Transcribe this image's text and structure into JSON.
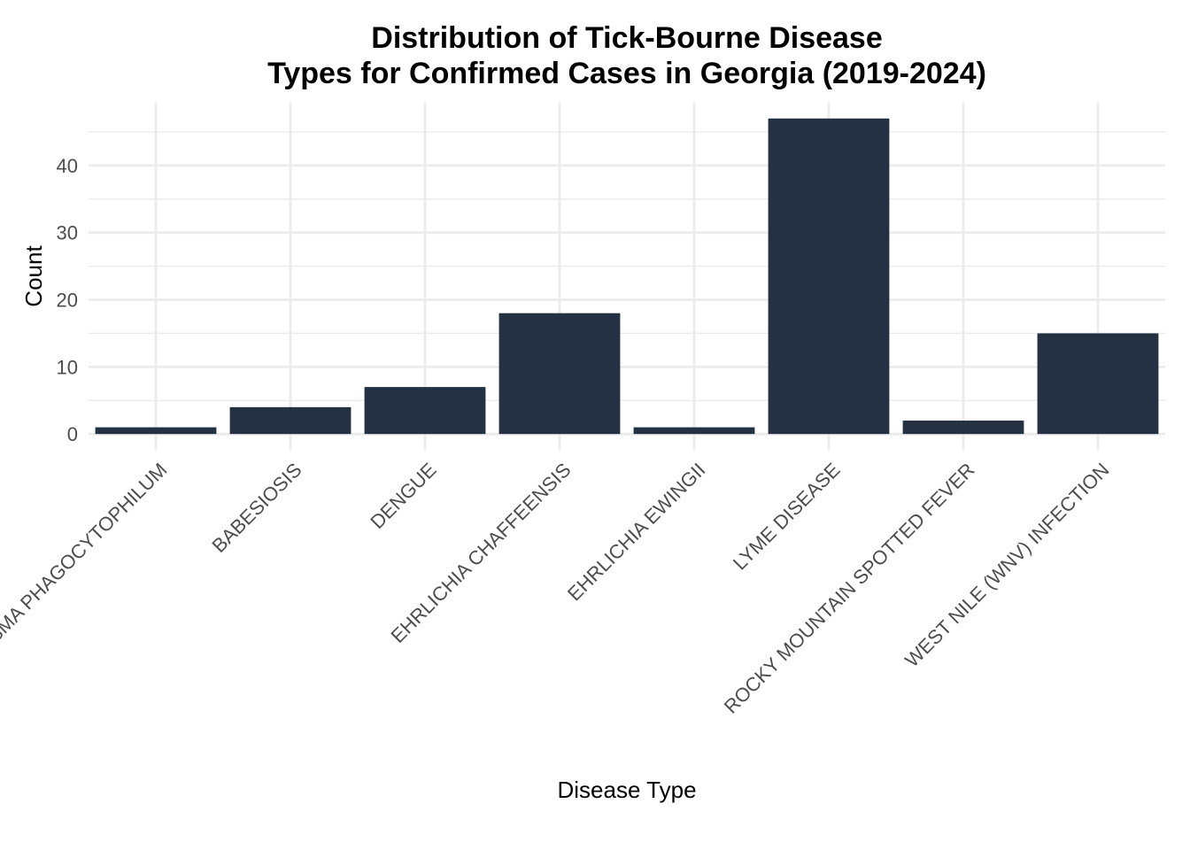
{
  "chart_data": {
    "type": "bar",
    "title": [
      "Distribution of Tick-Bourne Disease",
      "Types for Confirmed Cases in Georgia (2019-2024)"
    ],
    "xlabel": "Disease Type",
    "ylabel": "Count",
    "categories": [
      "ANAPLASMA PHAGOCYTOPHILUM",
      "BABESIOSIS",
      "DENGUE",
      "EHRLICHIA CHAFFEENSIS",
      "EHRLICHIA EWINGII",
      "LYME DISEASE",
      "ROCKY MOUNTAIN SPOTTED FEVER",
      "WEST NILE (WNV) INFECTION"
    ],
    "values": [
      1,
      4,
      7,
      18,
      1,
      47,
      2,
      15
    ],
    "yticks": [
      0,
      10,
      20,
      30,
      40
    ],
    "ylim": [
      -2.35,
      49.35
    ],
    "grid": true,
    "legend": "none",
    "colors": {
      "bar": "#233142",
      "grid": "#ebebeb",
      "tick_text": "#4d4d4d",
      "text": "#000000",
      "background": "#ffffff"
    }
  }
}
